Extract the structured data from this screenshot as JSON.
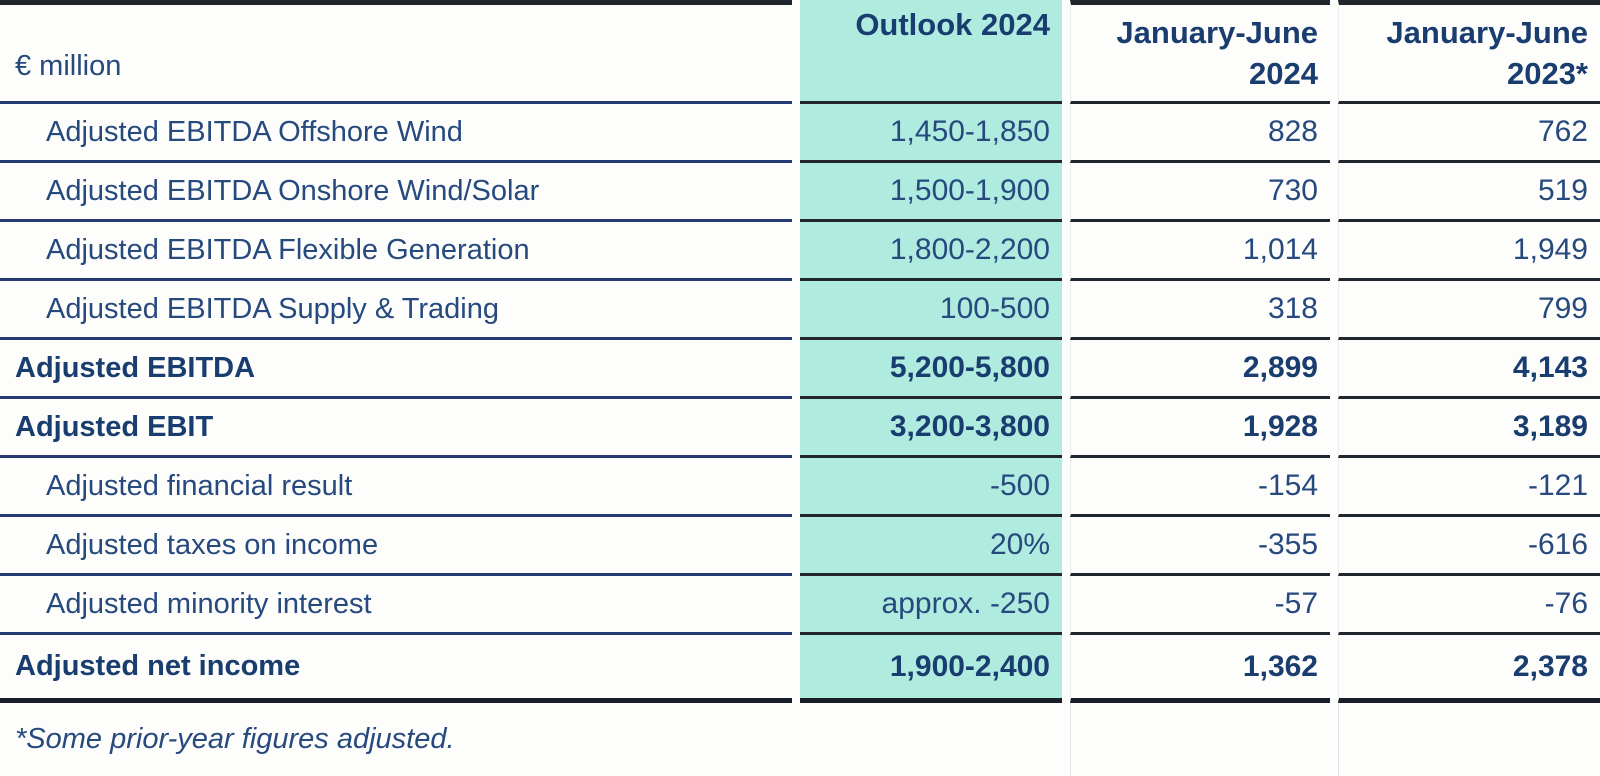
{
  "table": {
    "unit_label": "€ million",
    "columns": [
      {
        "line1": "Outlook 2024",
        "line2": "",
        "highlight": true
      },
      {
        "line1": "January-June",
        "line2": "2024",
        "highlight": false
      },
      {
        "line1": "January-June",
        "line2": "2023*",
        "highlight": false
      }
    ],
    "rows": [
      {
        "label": "Adjusted EBITDA Offshore Wind",
        "bold": false,
        "values": [
          "1,450-1,850",
          "828",
          "762"
        ]
      },
      {
        "label": "Adjusted EBITDA Onshore Wind/Solar",
        "bold": false,
        "values": [
          "1,500-1,900",
          "730",
          "519"
        ]
      },
      {
        "label": "Adjusted EBITDA Flexible Generation",
        "bold": false,
        "values": [
          "1,800-2,200",
          "1,014",
          "1,949"
        ]
      },
      {
        "label": "Adjusted EBITDA Supply & Trading",
        "bold": false,
        "values": [
          "100-500",
          "318",
          "799"
        ]
      },
      {
        "label": "Adjusted EBITDA",
        "bold": true,
        "values": [
          "5,200-5,800",
          "2,899",
          "4,143"
        ]
      },
      {
        "label": "Adjusted EBIT",
        "bold": true,
        "values": [
          "3,200-3,800",
          "1,928",
          "3,189"
        ]
      },
      {
        "label": "Adjusted financial result",
        "bold": false,
        "values": [
          "-500",
          "-154",
          "-121"
        ]
      },
      {
        "label": "Adjusted taxes on income",
        "bold": false,
        "values": [
          "20%",
          "-355",
          "-616"
        ]
      },
      {
        "label": "Adjusted minority interest",
        "bold": false,
        "values": [
          "approx. -250",
          "-57",
          "-76"
        ]
      },
      {
        "label": "Adjusted net income",
        "bold": true,
        "values": [
          "1,900-2,400",
          "1,362",
          "2,378"
        ]
      }
    ],
    "footnote": "*Some prior-year figures adjusted."
  },
  "colors": {
    "highlight_bg": "#b0ebe0",
    "text": "#26497e",
    "text_bold": "#1a3d70",
    "label_line_navy": "#253c72",
    "value_line_dark": "#20262e"
  }
}
